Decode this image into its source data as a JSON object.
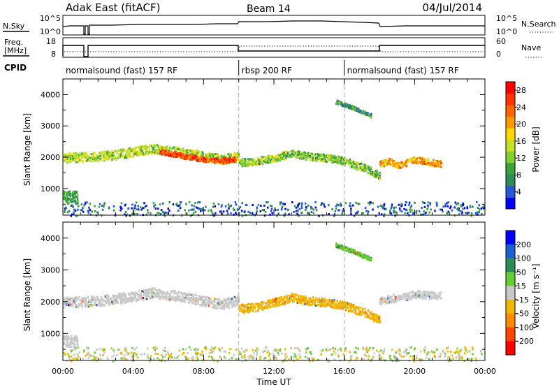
{
  "header": {
    "station": "Adak East (fitACF)",
    "beam": "Beam 14",
    "date": "04/Jul/2014"
  },
  "aux_panels": {
    "nsky_label": "N.Sky",
    "nsearch_label": "N.Search",
    "freq_label_1": "Freq.",
    "freq_label_2": "[MHz]",
    "nave_label": "Nave",
    "cpid_label": "CPID",
    "noise_ticks": [
      "10^5",
      "10^0"
    ],
    "freq_ticks": [
      "18",
      "8"
    ],
    "nave_ticks": [
      "60",
      "0"
    ]
  },
  "cpid_segments": [
    {
      "label": "normalsound (fast) 157 RF",
      "start": 0,
      "end": 10
    },
    {
      "label": "rbsp 200 RF",
      "start": 10,
      "end": 16
    },
    {
      "label": "normalsound (fast) 157 RF",
      "start": 16,
      "end": 24
    }
  ],
  "colors": {
    "power": [
      "#0000ff",
      "#2858d8",
      "#2e8b57",
      "#3aa23a",
      "#7fd030",
      "#c8e020",
      "#ffd700",
      "#ff9800",
      "#ff6600",
      "#ff3300",
      "#ff0000"
    ],
    "velocity": [
      "#0000ff",
      "#1b5fd0",
      "#2e8b57",
      "#66cc33",
      "#c8c8c8",
      "#f0b800",
      "#ff8c00",
      "#ff4500",
      "#ff0000"
    ]
  },
  "chart_data": [
    {
      "type": "heatmap",
      "name": "power",
      "xlabel": "",
      "ylabel": "Slant Range [km]",
      "xlim": [
        0,
        24
      ],
      "ylim": [
        150,
        4500
      ],
      "yticks": [
        1000,
        2000,
        3000,
        4000
      ],
      "colorbar_label": "Power [dB]",
      "colorbar_ticks": [
        "4",
        "8",
        "12",
        "16",
        "20",
        "24",
        "28"
      ],
      "colorbar_range": [
        0,
        30
      ],
      "bands": [
        {
          "x": [
            0.0,
            2.0,
            3.5,
            5.0,
            6.5,
            8.0,
            9.0,
            10.0
          ],
          "y": [
            2000,
            2050,
            2150,
            2300,
            2200,
            2050,
            1950,
            2050
          ],
          "width": 300,
          "value": 14
        },
        {
          "x": [
            5.5,
            7.0,
            8.0,
            9.0,
            9.8
          ],
          "y": [
            2200,
            2050,
            1950,
            1900,
            1950
          ],
          "width": 160,
          "value": 25
        },
        {
          "x": [
            10.0,
            11.0,
            12.0,
            13.0,
            14.0,
            15.0,
            16.0,
            17.0,
            18.0
          ],
          "y": [
            1850,
            1900,
            2000,
            2150,
            2050,
            2000,
            1900,
            1700,
            1450
          ],
          "width": 240,
          "value": 12
        },
        {
          "x": [
            18.0,
            18.5,
            19.0,
            20.0,
            21.0,
            21.5
          ],
          "y": [
            1800,
            1900,
            1750,
            1950,
            1850,
            1800
          ],
          "width": 200,
          "value": 20
        },
        {
          "x": [
            15.5,
            16.5,
            17.5
          ],
          "y": [
            3800,
            3600,
            3350
          ],
          "width": 120,
          "value": 8
        }
      ]
    },
    {
      "type": "heatmap",
      "name": "velocity",
      "xlabel": "Time UT",
      "ylabel": "Slant Range [km]",
      "xlim": [
        0,
        24
      ],
      "ylim": [
        150,
        4500
      ],
      "xticks": [
        "00:00",
        "04:00",
        "08:00",
        "12:00",
        "16:00",
        "20:00",
        "00:00"
      ],
      "yticks": [
        1000,
        2000,
        3000,
        4000
      ],
      "colorbar_label": "Velocity [m s⁻¹]",
      "colorbar_ticks": [
        "200",
        "100",
        "50",
        "15",
        "-15",
        "-50",
        "-100",
        "-200"
      ],
      "bands": [
        {
          "x": [
            0.0,
            2.0,
            3.5,
            5.0,
            6.5,
            8.0,
            9.0,
            10.0
          ],
          "y": [
            2000,
            2050,
            2150,
            2300,
            2200,
            2050,
            1950,
            2050
          ],
          "width": 320,
          "value": 0
        },
        {
          "x": [
            10.0,
            11.0,
            12.0,
            13.0,
            14.0,
            15.0,
            16.0,
            17.0,
            18.0
          ],
          "y": [
            1800,
            1850,
            2000,
            2150,
            2050,
            2000,
            1900,
            1700,
            1450
          ],
          "width": 260,
          "value": -40
        },
        {
          "x": [
            18.0,
            19.0,
            20.0,
            21.5
          ],
          "y": [
            2050,
            2150,
            2250,
            2200
          ],
          "width": 240,
          "value": 0
        },
        {
          "x": [
            15.5,
            16.5,
            17.5
          ],
          "y": [
            3800,
            3600,
            3350
          ],
          "width": 120,
          "value": 40
        }
      ]
    }
  ]
}
